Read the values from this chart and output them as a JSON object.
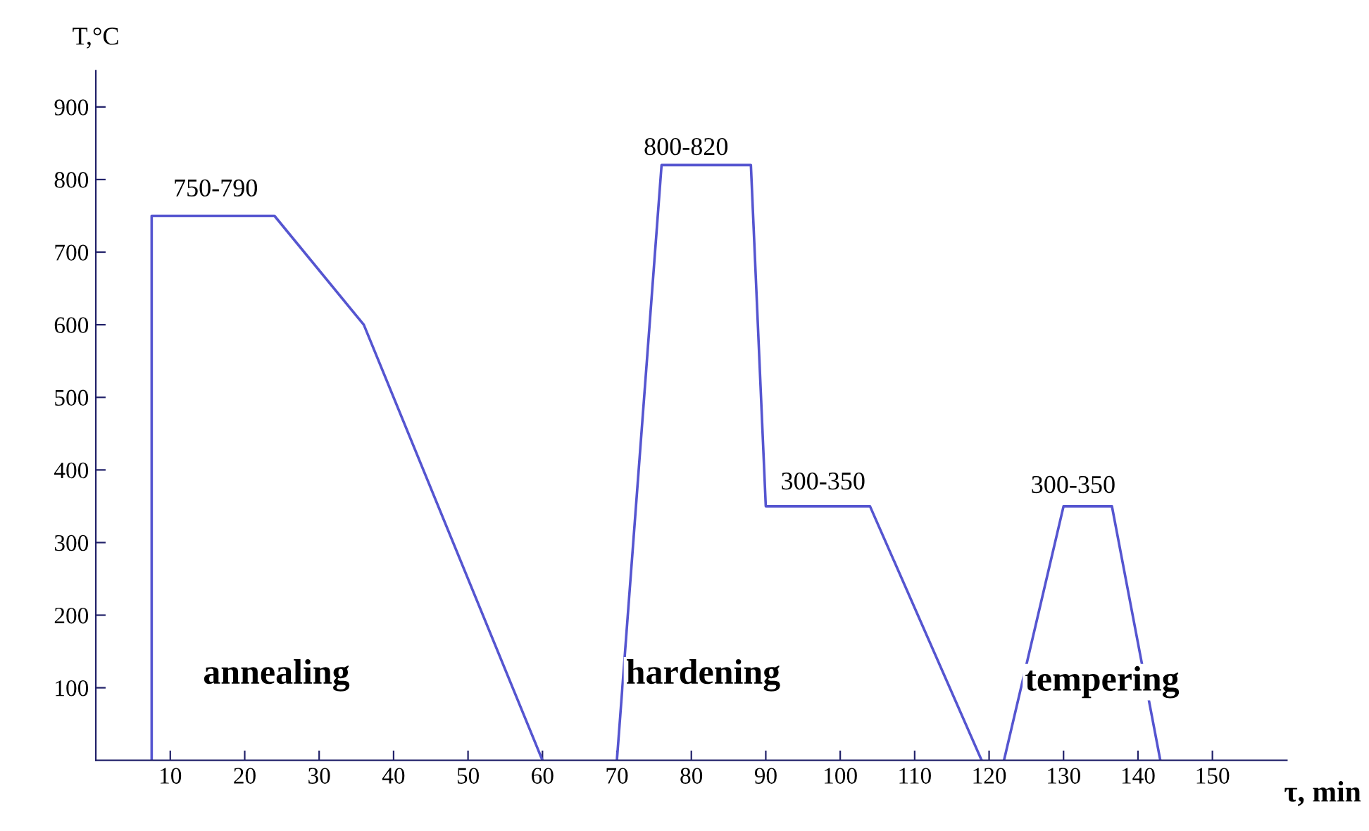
{
  "chart_data": {
    "type": "line",
    "xlabel": "τ, min",
    "ylabel": "T,°C",
    "series": [
      {
        "color": "#5555d0",
        "x": [
          7.5,
          7.5,
          24,
          36,
          60
        ],
        "values": [
          0,
          750,
          750,
          600,
          0
        ]
      },
      {
        "color": "#5555d0",
        "x": [
          70,
          76,
          88,
          90,
          104,
          119
        ],
        "values": [
          0,
          820,
          820,
          350,
          350,
          0
        ]
      },
      {
        "color": "#5555d0",
        "x": [
          122,
          130,
          136.5,
          143
        ],
        "values": [
          0,
          350,
          350,
          0
        ]
      }
    ],
    "annotations": [
      "750-790",
      "800-820",
      "300-350",
      "300-350",
      "annealing",
      "hardening",
      "tempering"
    ],
    "xlim": [
      0,
      160
    ],
    "ylim": [
      0,
      950
    ],
    "xticks": [
      10,
      20,
      30,
      40,
      50,
      60,
      70,
      80,
      90,
      100,
      110,
      120,
      130,
      140,
      150
    ],
    "yticks": [
      100,
      200,
      300,
      400,
      500,
      600,
      700,
      800,
      900
    ],
    "grid": false,
    "legend": false,
    "marker": "none",
    "line_style": "solid"
  }
}
